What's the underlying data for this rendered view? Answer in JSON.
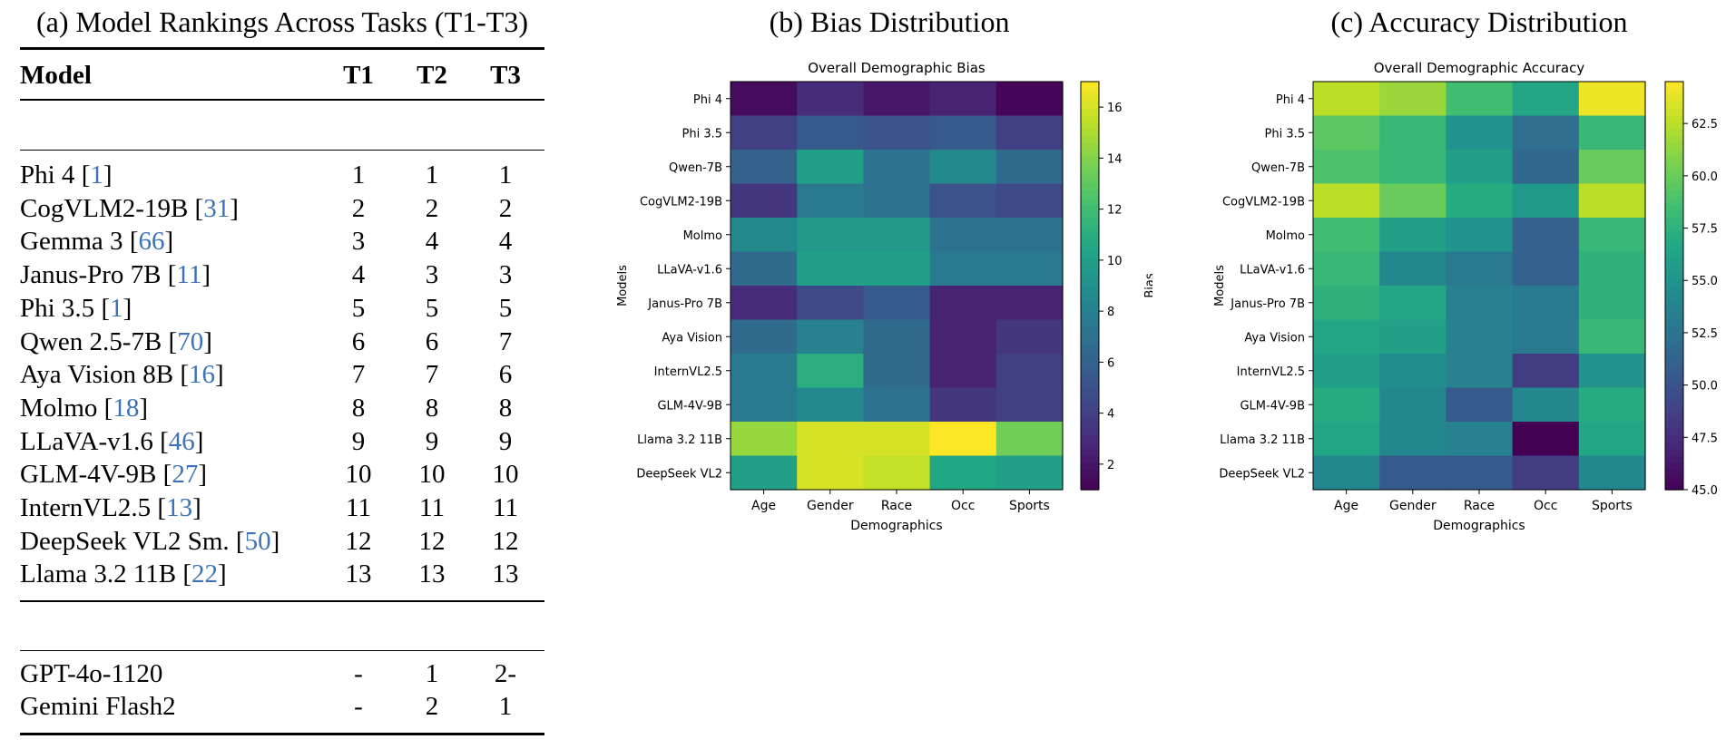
{
  "table": {
    "title": "(a) Model Rankings Across Tasks (T1-T3)",
    "headers": [
      "Model",
      "T1",
      "T2",
      "T3"
    ],
    "rows": [
      {
        "model": "Phi 4",
        "cite": "1",
        "t1": "1",
        "t2": "1",
        "t3": "1"
      },
      {
        "model": "CogVLM2-19B",
        "cite": "31",
        "t1": "2",
        "t2": "2",
        "t3": "2"
      },
      {
        "model": "Gemma 3",
        "cite": "66",
        "t1": "3",
        "t2": "4",
        "t3": "4"
      },
      {
        "model": "Janus-Pro 7B",
        "cite": "11",
        "t1": "4",
        "t2": "3",
        "t3": "3"
      },
      {
        "model": "Phi 3.5",
        "cite": "1",
        "t1": "5",
        "t2": "5",
        "t3": "5"
      },
      {
        "model": "Qwen 2.5-7B",
        "cite": "70",
        "t1": "6",
        "t2": "6",
        "t3": "7"
      },
      {
        "model": "Aya Vision 8B",
        "cite": "16",
        "t1": "7",
        "t2": "7",
        "t3": "6"
      },
      {
        "model": "Molmo",
        "cite": "18",
        "t1": "8",
        "t2": "8",
        "t3": "8"
      },
      {
        "model": "LLaVA-v1.6",
        "cite": "46",
        "t1": "9",
        "t2": "9",
        "t3": "9"
      },
      {
        "model": "GLM-4V-9B",
        "cite": "27",
        "t1": "10",
        "t2": "10",
        "t3": "10"
      },
      {
        "model": "InternVL2.5",
        "cite": "13",
        "t1": "11",
        "t2": "11",
        "t3": "11"
      },
      {
        "model": "DeepSeek VL2 Sm.",
        "cite": "50",
        "t1": "12",
        "t2": "12",
        "t3": "12"
      },
      {
        "model": "Llama 3.2 11B",
        "cite": "22",
        "t1": "13",
        "t2": "13",
        "t3": "13"
      }
    ],
    "closed_rows": [
      {
        "model": "GPT-4o-1120",
        "t1": "-",
        "t2": "1",
        "t3": "2-"
      },
      {
        "model": "Gemini Flash2",
        "t1": "-",
        "t2": "2",
        "t3": "1"
      }
    ]
  },
  "chart_data": [
    {
      "type": "heatmap",
      "panel_title": "(b) Bias Distribution",
      "title": "Overall Demographic Bias",
      "xlabel": "Demographics",
      "ylabel": "Models",
      "colorbar_label": "Bias",
      "x": [
        "Age",
        "Gender",
        "Race",
        "Occ",
        "Sports"
      ],
      "y": [
        "Phi 4",
        "Phi 3.5",
        "Qwen-7B",
        "CogVLM2-19B",
        "Molmo",
        "LLaVA-v1.6",
        "Janus-Pro 7B",
        "Aya Vision",
        "InternVL2.5",
        "GLM-4V-9B",
        "Llama 3.2 11B",
        "DeepSeek VL2"
      ],
      "values": [
        [
          1.5,
          3.0,
          2.0,
          2.5,
          1.2
        ],
        [
          4.0,
          5.5,
          5.0,
          5.5,
          4.0
        ],
        [
          6.0,
          10.0,
          7.0,
          8.5,
          6.5
        ],
        [
          3.5,
          7.5,
          7.0,
          5.0,
          4.5
        ],
        [
          8.5,
          9.5,
          9.5,
          7.0,
          7.0
        ],
        [
          6.5,
          10.0,
          10.0,
          7.5,
          7.5
        ],
        [
          3.0,
          4.5,
          5.5,
          2.5,
          2.5
        ],
        [
          6.5,
          8.0,
          6.5,
          2.5,
          3.5
        ],
        [
          7.5,
          11.0,
          6.5,
          2.5,
          4.0
        ],
        [
          7.5,
          8.5,
          7.0,
          3.5,
          4.0
        ],
        [
          14.5,
          16.0,
          16.0,
          17.0,
          13.5
        ],
        [
          10.0,
          16.0,
          15.5,
          10.5,
          10.0
        ]
      ],
      "vmin": 1,
      "vmax": 17,
      "colorbar_ticks": [
        2,
        4,
        6,
        8,
        10,
        12,
        14,
        16
      ]
    },
    {
      "type": "heatmap",
      "panel_title": "(c) Accuracy Distribution",
      "title": "Overall Demographic Accuracy",
      "xlabel": "Demographics",
      "ylabel": "Models",
      "colorbar_label": "Accuracy",
      "x": [
        "Age",
        "Gender",
        "Race",
        "Occ",
        "Sports"
      ],
      "y": [
        "Phi 4",
        "Phi 3.5",
        "Qwen-7B",
        "CogVLM2-19B",
        "Molmo",
        "LLaVA-v1.6",
        "Janus-Pro 7B",
        "Aya Vision",
        "InternVL2.5",
        "GLM-4V-9B",
        "Llama 3.2 11B",
        "DeepSeek VL2"
      ],
      "values": [
        [
          62.5,
          61.5,
          58.5,
          56.5,
          64.0
        ],
        [
          59.5,
          58.0,
          55.0,
          52.0,
          58.0
        ],
        [
          59.0,
          58.0,
          56.0,
          51.5,
          60.0
        ],
        [
          62.5,
          60.0,
          57.0,
          55.5,
          62.5
        ],
        [
          58.5,
          56.0,
          55.0,
          51.0,
          58.0
        ],
        [
          58.0,
          54.0,
          53.0,
          51.0,
          57.5
        ],
        [
          57.5,
          56.5,
          53.5,
          53.0,
          57.5
        ],
        [
          56.5,
          56.0,
          53.5,
          53.0,
          58.0
        ],
        [
          56.0,
          54.5,
          53.5,
          48.5,
          55.0
        ],
        [
          57.0,
          54.0,
          50.5,
          54.0,
          57.0
        ],
        [
          56.5,
          54.0,
          53.5,
          45.0,
          56.5
        ],
        [
          54.0,
          50.5,
          50.5,
          48.5,
          54.0
        ]
      ],
      "vmin": 45,
      "vmax": 64.5,
      "colorbar_ticks": [
        45.0,
        47.5,
        50.0,
        52.5,
        55.0,
        57.5,
        60.0,
        62.5
      ]
    }
  ]
}
